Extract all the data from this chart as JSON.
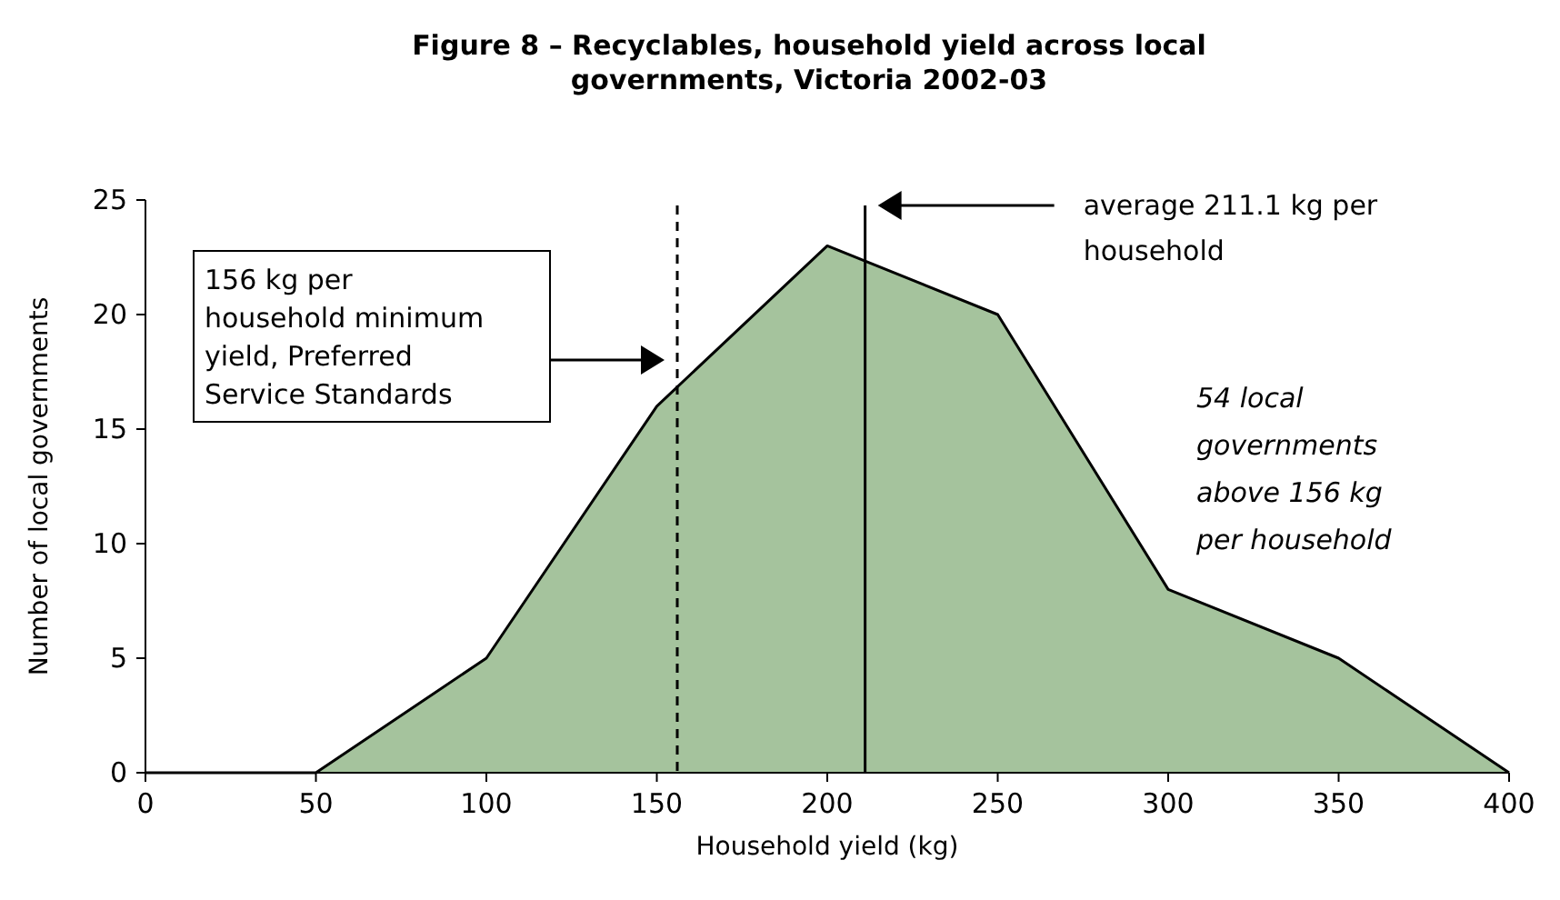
{
  "chart_data": {
    "type": "area",
    "title": "Figure 8 – Recyclables, household yield across local governments, Victoria 2002-03",
    "xlabel": "Household yield (kg)",
    "ylabel": "Number of local governments",
    "x": [
      0,
      50,
      100,
      150,
      200,
      250,
      300,
      350,
      400
    ],
    "series": [
      {
        "color": "#a5c39d",
        "values": [
          0,
          0,
          5,
          16,
          23,
          20,
          8,
          5,
          0
        ]
      }
    ],
    "xlim": [
      0,
      400
    ],
    "xticks": [
      0,
      50,
      100,
      150,
      200,
      250,
      300,
      350,
      400
    ],
    "ylim": [
      0,
      25
    ],
    "yticks": [
      0,
      5,
      10,
      15,
      20,
      25
    ],
    "ref_lines": [
      {
        "axis": "x",
        "value": 156,
        "line_style": "dashed"
      },
      {
        "axis": "x",
        "value": 211.1,
        "line_style": "solid"
      }
    ],
    "annotations": [
      "156 kg per household minimum yield, Preferred Service Standards",
      "average 211.1 kg per household",
      "54 local governments above 156 kg per household"
    ]
  }
}
